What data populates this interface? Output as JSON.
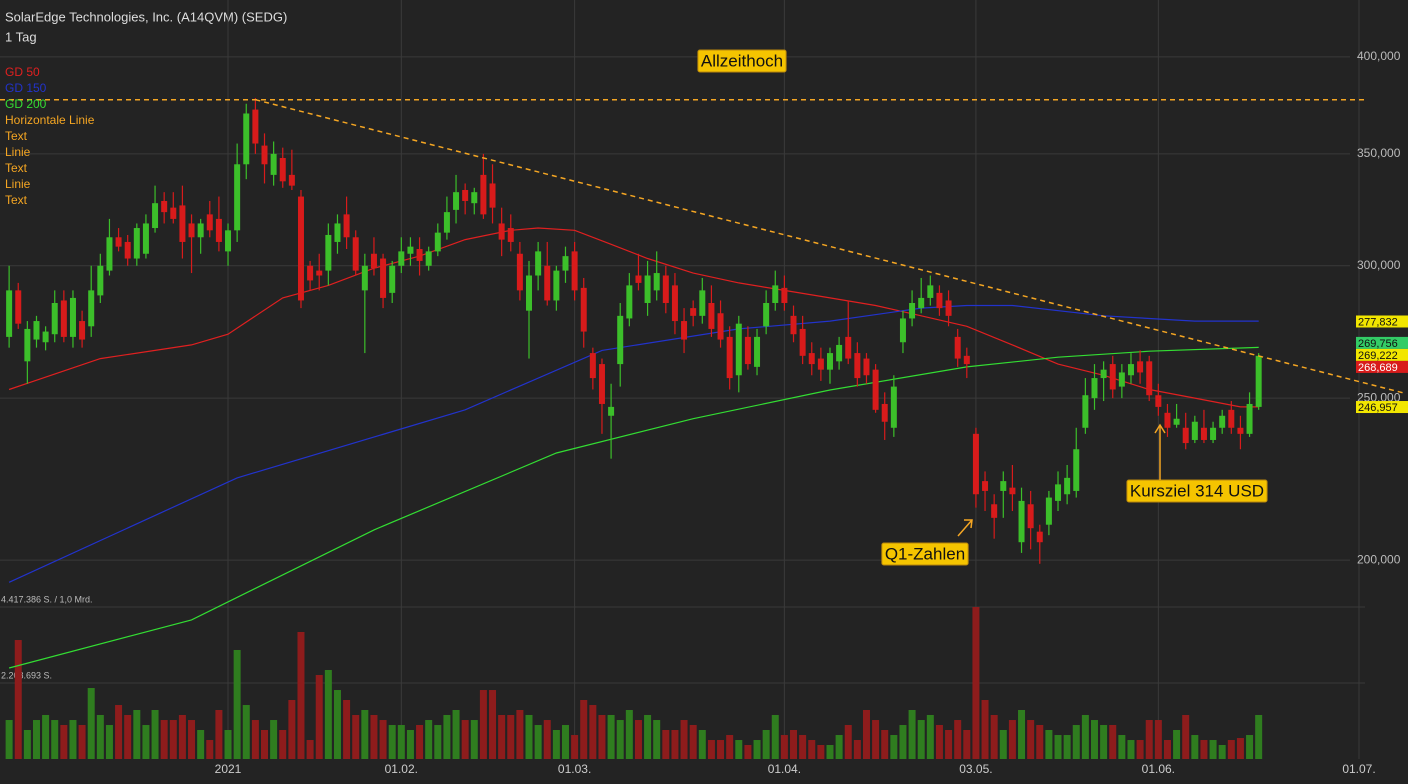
{
  "chart_data": {
    "type": "candlestick",
    "title": "SolarEdge Technologies, Inc. (A14QVM) (SEDG)",
    "subtitle": "1 Tag",
    "log_scale": true,
    "grid": true,
    "up_color": "#3cbf2a",
    "down_color": "#d81b1b",
    "volume_up_color": "#2f7d1f",
    "volume_down_color": "#8e1c1c",
    "xlim": [
      -1,
      148
    ],
    "xticks": [
      {
        "value": 24,
        "label": "2021"
      },
      {
        "value": 43,
        "label": "01.02."
      },
      {
        "value": 62,
        "label": "01.03."
      },
      {
        "value": 85,
        "label": "01.04."
      },
      {
        "value": 106,
        "label": "03.05."
      },
      {
        "value": 126,
        "label": "01.06."
      },
      {
        "value": 148,
        "label": "01.07."
      }
    ],
    "ylim": [
      187.5,
      432.6
    ],
    "yticks": [
      {
        "value": 200,
        "label": "200,000"
      },
      {
        "value": 250,
        "label": "250,000"
      },
      {
        "value": 300,
        "label": "300,000"
      },
      {
        "value": 350,
        "label": "350,000"
      },
      {
        "value": 400,
        "label": "400,000"
      }
    ],
    "vlim": [
      0,
      4417386
    ],
    "vticks": [
      {
        "value": 2208693,
        "label": "2.208.693 S."
      },
      {
        "value": 4417386,
        "label": "4.417.386 S. / 1,0 Mrd."
      }
    ],
    "x": [
      0,
      1,
      2,
      3,
      4,
      5,
      6,
      7,
      8,
      9,
      10,
      11,
      12,
      13,
      14,
      15,
      16,
      17,
      18,
      19,
      20,
      21,
      22,
      23,
      24,
      25,
      26,
      27,
      28,
      29,
      30,
      31,
      32,
      33,
      34,
      35,
      36,
      37,
      38,
      39,
      40,
      41,
      42,
      43,
      44,
      45,
      46,
      47,
      48,
      49,
      50,
      51,
      52,
      53,
      54,
      55,
      56,
      57,
      58,
      59,
      60,
      61,
      62,
      63,
      64,
      65,
      66,
      67,
      68,
      69,
      70,
      71,
      72,
      73,
      74,
      75,
      76,
      77,
      78,
      79,
      80,
      81,
      82,
      83,
      84,
      85,
      86,
      87,
      88,
      89,
      90,
      91,
      92,
      93,
      94,
      95,
      96,
      97,
      98,
      99,
      100,
      101,
      102,
      103,
      104,
      105,
      106,
      107,
      108,
      109,
      110,
      111,
      112,
      113,
      114,
      115,
      116,
      117,
      118,
      119,
      120,
      121,
      122,
      123,
      124,
      125,
      126,
      127,
      128,
      129,
      130,
      131,
      132,
      133,
      134,
      135,
      136,
      137
    ],
    "open": [
      272,
      290,
      263,
      271,
      270,
      273,
      286,
      272,
      278,
      276,
      288,
      298,
      312,
      310,
      303,
      305,
      316,
      328,
      325,
      326,
      318,
      312,
      322,
      320,
      306,
      315,
      345,
      372,
      354,
      340,
      348,
      340,
      330,
      300,
      298,
      298,
      310,
      322,
      312,
      290,
      305,
      303,
      289,
      300,
      305,
      307,
      300,
      306,
      314,
      324,
      333,
      327,
      340,
      336,
      318,
      316,
      305,
      282,
      296,
      300,
      286,
      298,
      306,
      291,
      266,
      262,
      244,
      262,
      279,
      296,
      285,
      290,
      296,
      292,
      278,
      283,
      280,
      285,
      281,
      272,
      258,
      272,
      261,
      276,
      285,
      291,
      280,
      275,
      266,
      264,
      260,
      263,
      272,
      266,
      264,
      260,
      248,
      240,
      270,
      279,
      283,
      287,
      289,
      286,
      272,
      265,
      238,
      223,
      216,
      220,
      221,
      205,
      216,
      208,
      210,
      217,
      219,
      220,
      240,
      250,
      257,
      262,
      254,
      258,
      263,
      263,
      251,
      245,
      241,
      240,
      236,
      240,
      236,
      240,
      246,
      240,
      238,
      247
    ],
    "high": [
      300,
      293,
      278,
      280,
      276,
      290,
      290,
      290,
      282,
      300,
      305,
      320,
      316,
      313,
      318,
      322,
      335,
      332,
      332,
      335,
      322,
      320,
      328,
      330,
      318,
      355,
      375,
      378,
      360,
      356,
      353,
      352,
      333,
      302,
      305,
      318,
      322,
      330,
      315,
      305,
      312,
      305,
      302,
      312,
      312,
      312,
      308,
      318,
      330,
      340,
      336,
      334,
      350,
      345,
      325,
      322,
      310,
      302,
      310,
      310,
      300,
      308,
      310,
      295,
      268,
      264,
      255,
      285,
      297,
      305,
      302,
      306,
      300,
      297,
      283,
      286,
      295,
      292,
      286,
      276,
      280,
      276,
      275,
      290,
      298,
      296,
      284,
      280,
      270,
      268,
      268,
      272,
      286,
      270,
      266,
      262,
      252,
      258,
      282,
      290,
      295,
      296,
      292,
      290,
      275,
      268,
      240,
      226,
      219,
      226,
      228,
      221,
      220,
      210,
      220,
      226,
      228,
      240,
      257,
      262,
      263,
      265,
      262,
      266,
      267,
      265,
      255,
      248,
      248,
      245,
      244,
      246,
      242,
      246,
      249,
      244,
      252,
      266
    ],
    "low": [
      268,
      275,
      255,
      268,
      267,
      270,
      270,
      268,
      268,
      272,
      285,
      296,
      306,
      300,
      300,
      303,
      314,
      318,
      318,
      303,
      297,
      305,
      312,
      306,
      300,
      310,
      338,
      350,
      336,
      335,
      334,
      333,
      283,
      290,
      290,
      292,
      305,
      307,
      296,
      266,
      296,
      283,
      285,
      297,
      300,
      296,
      298,
      304,
      311,
      318,
      322,
      322,
      320,
      318,
      304,
      306,
      286,
      264,
      290,
      284,
      282,
      293,
      286,
      268,
      253,
      238,
      230,
      254,
      276,
      290,
      280,
      286,
      281,
      273,
      266,
      276,
      277,
      272,
      268,
      253,
      252,
      260,
      258,
      273,
      282,
      282,
      270,
      262,
      258,
      256,
      255,
      260,
      262,
      254,
      255,
      245,
      236,
      237,
      266,
      276,
      281,
      284,
      280,
      276,
      261,
      257,
      215,
      214,
      206,
      212,
      214,
      202,
      203,
      199,
      207,
      214,
      216,
      218,
      238,
      246,
      249,
      250,
      250,
      255,
      255,
      249,
      244,
      237,
      240,
      233,
      235,
      235,
      235,
      238,
      238,
      233,
      237,
      246
    ],
    "close": [
      290,
      277,
      275,
      278,
      274,
      285,
      272,
      287,
      271,
      290,
      300,
      312,
      308,
      303,
      316,
      318,
      327,
      323,
      320,
      310,
      312,
      318,
      315,
      310,
      315,
      345,
      370,
      355,
      345,
      350,
      337,
      335,
      286,
      294,
      296,
      313,
      318,
      312,
      298,
      300,
      299,
      287,
      300,
      306,
      308,
      302,
      306,
      314,
      323,
      332,
      328,
      332,
      322,
      325,
      311,
      310,
      290,
      296,
      306,
      286,
      298,
      304,
      290,
      274,
      257,
      248,
      247,
      280,
      292,
      293,
      296,
      297,
      285,
      278,
      271,
      280,
      290,
      275,
      271,
      257,
      277,
      262,
      272,
      285,
      292,
      285,
      273,
      265,
      262,
      260,
      266,
      269,
      264,
      257,
      258,
      246,
      242,
      254,
      279,
      285,
      287,
      292,
      283,
      280,
      264,
      262,
      219,
      220,
      212,
      223,
      219,
      217,
      209,
      205,
      218,
      222,
      224,
      233,
      251,
      257,
      260,
      253,
      259,
      262,
      259,
      251,
      247,
      240,
      243,
      235,
      242,
      236,
      240,
      244,
      240,
      238,
      248,
      265
    ],
    "volume": [
      1133000,
      3458000,
      843000,
      1133000,
      1279000,
      1133000,
      988000,
      1133000,
      988000,
      2063000,
      1279000,
      988000,
      1569000,
      1279000,
      1424000,
      988000,
      1424000,
      1133000,
      1133000,
      1279000,
      1133000,
      843000,
      552000,
      1424000,
      843000,
      3168000,
      1569000,
      1133000,
      843000,
      1133000,
      843000,
      1715000,
      3691000,
      552000,
      2441000,
      2587000,
      2005000,
      1715000,
      1279000,
      1424000,
      1279000,
      1133000,
      988000,
      988000,
      843000,
      988000,
      1133000,
      988000,
      1279000,
      1424000,
      1133000,
      1133000,
      2005000,
      2005000,
      1279000,
      1279000,
      1424000,
      1279000,
      988000,
      1133000,
      843000,
      988000,
      697000,
      1715000,
      1569000,
      1279000,
      1279000,
      1133000,
      1424000,
      1133000,
      1279000,
      1133000,
      843000,
      843000,
      1133000,
      988000,
      843000,
      552000,
      552000,
      697000,
      552000,
      407000,
      552000,
      843000,
      1279000,
      697000,
      843000,
      697000,
      552000,
      407000,
      407000,
      697000,
      988000,
      552000,
      1424000,
      1133000,
      843000,
      697000,
      988000,
      1424000,
      1133000,
      1279000,
      988000,
      843000,
      1133000,
      843000,
      4417386,
      1715000,
      1279000,
      843000,
      1133000,
      1424000,
      1133000,
      988000,
      843000,
      697000,
      697000,
      988000,
      1279000,
      1133000,
      988000,
      988000,
      697000,
      552000,
      552000,
      1133000,
      1133000,
      552000,
      843000,
      1279000,
      697000,
      552000,
      552000,
      407000,
      552000,
      610000,
      697000,
      1279000
    ],
    "series": [
      {
        "name": "GD 50",
        "color": "#e02020",
        "x": [
          0,
          10,
          20,
          24,
          30,
          35,
          40,
          45,
          50,
          55,
          58,
          62,
          66,
          70,
          75,
          80,
          85,
          90,
          95,
          100,
          105,
          110,
          115,
          120,
          125,
          130,
          135,
          137
        ],
        "values": [
          253,
          264,
          269,
          273,
          287,
          292,
          299,
          304,
          311,
          315,
          316,
          315,
          309,
          303,
          297,
          293,
          290,
          287,
          284,
          280,
          276,
          269,
          262,
          258,
          253,
          250,
          247,
          247
        ]
      },
      {
        "name": "GD 150",
        "color": "#2233cc",
        "x": [
          0,
          25,
          50,
          65,
          80,
          90,
          100,
          105,
          110,
          120,
          130,
          137
        ],
        "values": [
          194,
          224,
          246,
          267,
          275,
          278,
          283,
          284,
          284,
          280,
          278,
          278
        ]
      },
      {
        "name": "GD 200",
        "color": "#33dd33",
        "x": [
          0,
          20,
          40,
          60,
          75,
          90,
          105,
          115,
          125,
          137
        ],
        "values": [
          172.4,
          184.2,
          208.5,
          231.8,
          243,
          252.8,
          261,
          264.5,
          266.7,
          268.1
        ]
      }
    ],
    "drawing_color": "#f5a623",
    "drawings": [
      {
        "name": "Horizontale Linie",
        "value": 377.1
      },
      {
        "name": "Text",
        "text": "Allzeithoch"
      },
      {
        "name": "Linie",
        "points": [
          {
            "x": 27,
            "y": 377.1
          },
          {
            "x": 153,
            "y": 251.7
          }
        ]
      },
      {
        "name": "Text",
        "text": "Q1-Zahlen"
      },
      {
        "name": "Linie"
      },
      {
        "name": "Text",
        "text": "Kursziel 314 USD"
      }
    ],
    "price_labels": [
      {
        "value": 277.832,
        "label": "277,832",
        "color": "#f2e600",
        "text_color": "#111111"
      },
      {
        "value": 269.756,
        "label": "269,756",
        "color": "#33cc66",
        "text_color": "#111111"
      },
      {
        "value": 269.222,
        "label": "269,222",
        "color": "#f2e600",
        "text_color": "#111111"
      },
      {
        "value": 268.689,
        "label": "268,689",
        "color": "#d81b1b",
        "text_color": "#ffffff"
      },
      {
        "value": 246.957,
        "label": "246,957",
        "color": "#f2e600",
        "text_color": "#111111"
      }
    ]
  }
}
